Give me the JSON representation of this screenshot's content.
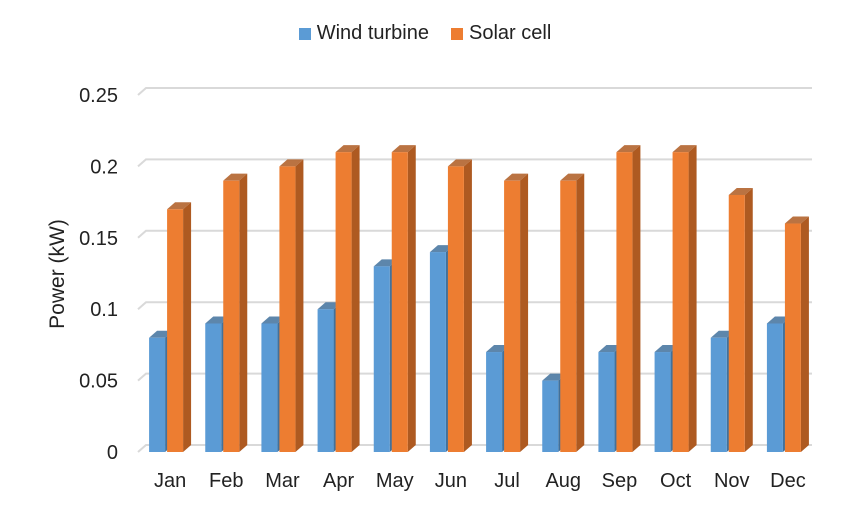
{
  "chart_data": {
    "type": "bar",
    "categories": [
      "Jan",
      "Feb",
      "Mar",
      "Apr",
      "May",
      "Jun",
      "Jul",
      "Aug",
      "Sep",
      "Oct",
      "Nov",
      "Dec"
    ],
    "series": [
      {
        "name": "Wind turbine",
        "values": [
          0.08,
          0.09,
          0.09,
          0.1,
          0.13,
          0.14,
          0.07,
          0.05,
          0.07,
          0.07,
          0.08,
          0.09
        ],
        "color": "#5b9bd5",
        "side_color": "#41719c"
      },
      {
        "name": "Solar cell",
        "values": [
          0.17,
          0.19,
          0.2,
          0.21,
          0.21,
          0.2,
          0.19,
          0.19,
          0.21,
          0.21,
          0.18,
          0.16
        ],
        "color": "#ed7d31",
        "side_color": "#ae5a21"
      }
    ],
    "xlabel": "",
    "ylabel": "Power (kW)",
    "ylim": [
      0,
      0.25
    ],
    "yticks": [
      "0",
      "0.05",
      "0.1",
      "0.15",
      "0.2",
      "0.25"
    ],
    "grid": true,
    "legend_position": "top-center"
  }
}
